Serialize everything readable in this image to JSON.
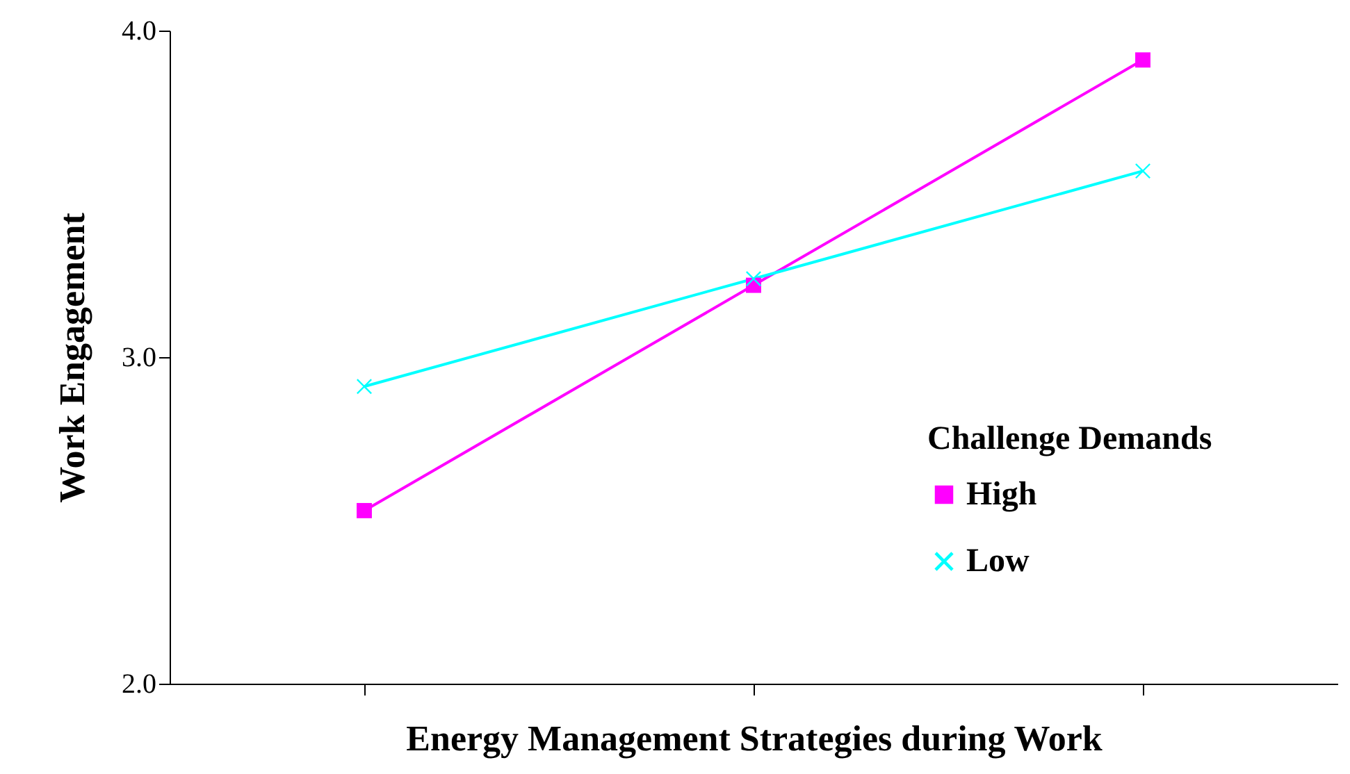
{
  "chart_data": {
    "type": "line",
    "xlabel": "Energy Management Strategies during Work",
    "ylabel": "Work Engagement",
    "legend_title": "Challenge Demands",
    "categories": [
      null,
      null,
      null
    ],
    "series": [
      {
        "name": "High",
        "color": "#ff00ff",
        "marker": "square",
        "values": [
          2.53,
          3.22,
          3.91
        ]
      },
      {
        "name": "Low",
        "color": "#00ffff",
        "marker": "cross",
        "values": [
          2.91,
          3.24,
          3.57
        ]
      }
    ],
    "ylim": [
      2.0,
      4.0
    ],
    "yticks": [
      {
        "value": 2,
        "label": "2.0"
      },
      {
        "value": 3,
        "label": "3.0"
      },
      {
        "value": 4,
        "label": "4.0"
      }
    ],
    "grid": false,
    "legend": "right",
    "line_style": "solid"
  }
}
